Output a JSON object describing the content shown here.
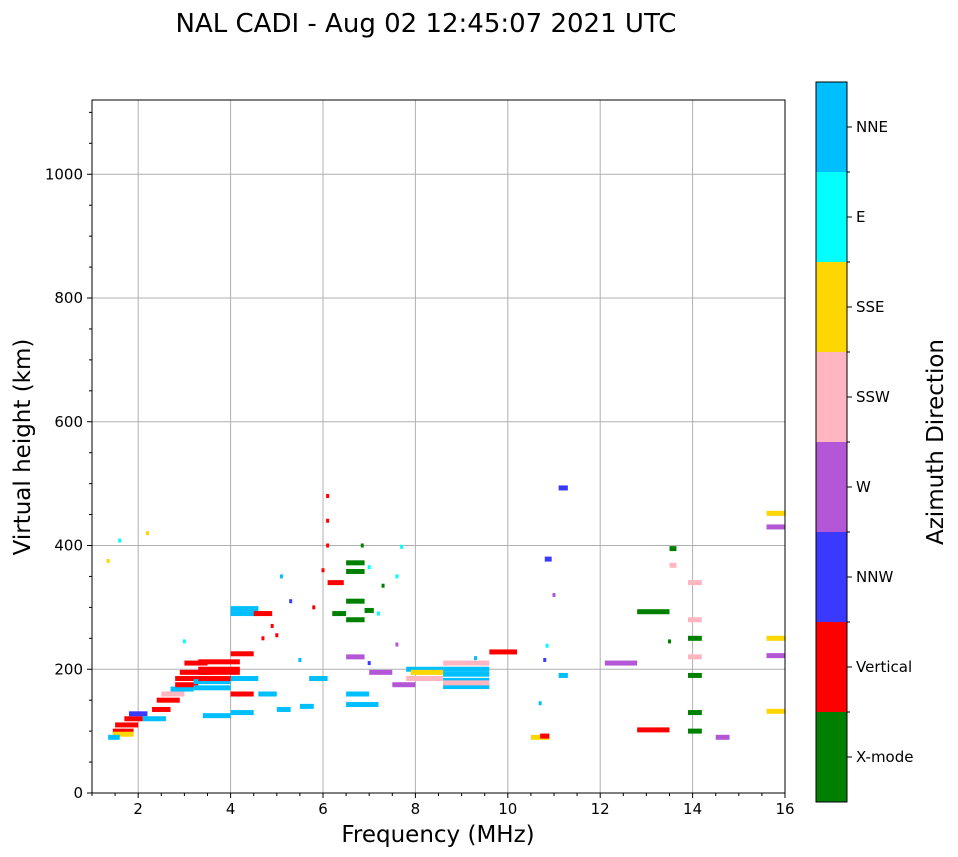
{
  "chart_data": {
    "type": "scatter",
    "title": "NAL CADI - Aug 02 12:45:07 2021 UTC",
    "xlabel": "Frequency (MHz)",
    "ylabel": "Virtual height (km)",
    "xlim": [
      1,
      16
    ],
    "ylim": [
      0,
      1120
    ],
    "xticks": [
      2,
      4,
      6,
      8,
      10,
      12,
      14,
      16
    ],
    "yticks": [
      0,
      200,
      400,
      600,
      800,
      1000
    ],
    "grid": true,
    "colorbar": {
      "label": "Azimuth Direction",
      "categories": [
        {
          "name": "X-mode",
          "color": "#008000"
        },
        {
          "name": "Vertical",
          "color": "#ff0000"
        },
        {
          "name": "NNW",
          "color": "#3a3aff"
        },
        {
          "name": "W",
          "color": "#b457d6"
        },
        {
          "name": "SSW",
          "color": "#ffb6c1"
        },
        {
          "name": "SSE",
          "color": "#ffd700"
        },
        {
          "name": "E",
          "color": "#00ffff"
        },
        {
          "name": "NNE",
          "color": "#00bfff"
        }
      ]
    },
    "segments": [
      {
        "f0": 1.45,
        "f1": 1.9,
        "h": 100,
        "dir": "Vertical"
      },
      {
        "f0": 1.45,
        "f1": 1.9,
        "h": 95,
        "dir": "SSE"
      },
      {
        "f0": 1.35,
        "f1": 1.6,
        "h": 90,
        "dir": "NNE"
      },
      {
        "f0": 1.5,
        "f1": 2.0,
        "h": 110,
        "dir": "Vertical"
      },
      {
        "f0": 1.7,
        "f1": 2.1,
        "h": 120,
        "dir": "Vertical"
      },
      {
        "f0": 1.8,
        "f1": 2.2,
        "h": 128,
        "dir": "NNW"
      },
      {
        "f0": 2.1,
        "f1": 2.6,
        "h": 120,
        "dir": "NNE"
      },
      {
        "f0": 2.3,
        "f1": 2.7,
        "h": 135,
        "dir": "Vertical"
      },
      {
        "f0": 2.4,
        "f1": 2.9,
        "h": 150,
        "dir": "Vertical"
      },
      {
        "f0": 2.5,
        "f1": 3.0,
        "h": 160,
        "dir": "SSW"
      },
      {
        "f0": 2.7,
        "f1": 3.2,
        "h": 168,
        "dir": "NNE"
      },
      {
        "f0": 2.8,
        "f1": 3.3,
        "h": 175,
        "dir": "Vertical"
      },
      {
        "f0": 2.8,
        "f1": 3.5,
        "h": 185,
        "dir": "Vertical"
      },
      {
        "f0": 2.9,
        "f1": 3.6,
        "h": 195,
        "dir": "Vertical"
      },
      {
        "f0": 3.0,
        "f1": 3.5,
        "h": 210,
        "dir": "Vertical"
      },
      {
        "f0": 3.2,
        "f1": 4.0,
        "h": 170,
        "dir": "NNE"
      },
      {
        "f0": 3.2,
        "f1": 4.0,
        "h": 180,
        "dir": "NNE"
      },
      {
        "f0": 3.3,
        "f1": 4.2,
        "h": 185,
        "dir": "Vertical"
      },
      {
        "f0": 3.3,
        "f1": 4.2,
        "h": 195,
        "dir": "Vertical"
      },
      {
        "f0": 3.3,
        "f1": 4.2,
        "h": 200,
        "dir": "Vertical"
      },
      {
        "f0": 3.3,
        "f1": 4.2,
        "h": 212,
        "dir": "Vertical"
      },
      {
        "f0": 3.4,
        "f1": 4.0,
        "h": 125,
        "dir": "NNE"
      },
      {
        "f0": 4.0,
        "f1": 4.5,
        "h": 130,
        "dir": "NNE"
      },
      {
        "f0": 4.0,
        "f1": 4.5,
        "h": 160,
        "dir": "Vertical"
      },
      {
        "f0": 4.0,
        "f1": 4.6,
        "h": 185,
        "dir": "NNE"
      },
      {
        "f0": 4.0,
        "f1": 4.5,
        "h": 225,
        "dir": "Vertical"
      },
      {
        "f0": 4.0,
        "f1": 4.6,
        "h": 290,
        "dir": "NNE"
      },
      {
        "f0": 4.0,
        "f1": 4.6,
        "h": 298,
        "dir": "NNE"
      },
      {
        "f0": 4.5,
        "f1": 4.9,
        "h": 290,
        "dir": "Vertical"
      },
      {
        "f0": 4.6,
        "f1": 5.0,
        "h": 160,
        "dir": "NNE"
      },
      {
        "f0": 5.0,
        "f1": 5.3,
        "h": 135,
        "dir": "NNE"
      },
      {
        "f0": 5.5,
        "f1": 5.8,
        "h": 140,
        "dir": "NNE"
      },
      {
        "f0": 5.7,
        "f1": 6.1,
        "h": 185,
        "dir": "NNE"
      },
      {
        "f0": 6.1,
        "f1": 6.45,
        "h": 340,
        "dir": "Vertical"
      },
      {
        "f0": 6.2,
        "f1": 6.5,
        "h": 290,
        "dir": "X-mode"
      },
      {
        "f0": 6.5,
        "f1": 6.9,
        "h": 280,
        "dir": "X-mode"
      },
      {
        "f0": 6.5,
        "f1": 6.9,
        "h": 358,
        "dir": "X-mode"
      },
      {
        "f0": 6.5,
        "f1": 6.9,
        "h": 372,
        "dir": "X-mode"
      },
      {
        "f0": 6.5,
        "f1": 6.9,
        "h": 310,
        "dir": "X-mode"
      },
      {
        "f0": 6.9,
        "f1": 7.1,
        "h": 295,
        "dir": "X-mode"
      },
      {
        "f0": 6.5,
        "f1": 7.0,
        "h": 160,
        "dir": "NNE"
      },
      {
        "f0": 6.5,
        "f1": 7.2,
        "h": 143,
        "dir": "NNE"
      },
      {
        "f0": 6.5,
        "f1": 6.9,
        "h": 220,
        "dir": "W"
      },
      {
        "f0": 7.0,
        "f1": 7.5,
        "h": 195,
        "dir": "W"
      },
      {
        "f0": 7.5,
        "f1": 8.0,
        "h": 175,
        "dir": "W"
      },
      {
        "f0": 7.8,
        "f1": 8.6,
        "h": 200,
        "dir": "NNE"
      },
      {
        "f0": 7.8,
        "f1": 8.6,
        "h": 185,
        "dir": "SSW"
      },
      {
        "f0": 7.9,
        "f1": 8.6,
        "h": 195,
        "dir": "SSE"
      },
      {
        "f0": 8.6,
        "f1": 9.6,
        "h": 172,
        "dir": "NNE"
      },
      {
        "f0": 8.6,
        "f1": 9.6,
        "h": 182,
        "dir": "NNE"
      },
      {
        "f0": 8.6,
        "f1": 9.6,
        "h": 192,
        "dir": "NNE"
      },
      {
        "f0": 8.6,
        "f1": 9.6,
        "h": 200,
        "dir": "NNE"
      },
      {
        "f0": 8.6,
        "f1": 9.6,
        "h": 178,
        "dir": "SSW"
      },
      {
        "f0": 8.6,
        "f1": 9.6,
        "h": 210,
        "dir": "SSW"
      },
      {
        "f0": 9.6,
        "f1": 10.2,
        "h": 228,
        "dir": "Vertical"
      },
      {
        "f0": 10.5,
        "f1": 10.9,
        "h": 90,
        "dir": "SSE"
      },
      {
        "f0": 10.7,
        "f1": 10.9,
        "h": 92,
        "dir": "Vertical"
      },
      {
        "f0": 10.8,
        "f1": 10.95,
        "h": 378,
        "dir": "NNW"
      },
      {
        "f0": 11.1,
        "f1": 11.3,
        "h": 493,
        "dir": "NNW"
      },
      {
        "f0": 11.1,
        "f1": 11.3,
        "h": 190,
        "dir": "NNE"
      },
      {
        "f0": 12.1,
        "f1": 12.8,
        "h": 210,
        "dir": "W"
      },
      {
        "f0": 12.8,
        "f1": 13.5,
        "h": 293,
        "dir": "X-mode"
      },
      {
        "f0": 12.8,
        "f1": 13.5,
        "h": 102,
        "dir": "Vertical"
      },
      {
        "f0": 13.5,
        "f1": 13.65,
        "h": 395,
        "dir": "X-mode"
      },
      {
        "f0": 13.5,
        "f1": 13.65,
        "h": 368,
        "dir": "SSW"
      },
      {
        "f0": 13.9,
        "f1": 14.2,
        "h": 340,
        "dir": "SSW"
      },
      {
        "f0": 13.9,
        "f1": 14.2,
        "h": 280,
        "dir": "SSW"
      },
      {
        "f0": 13.9,
        "f1": 14.2,
        "h": 220,
        "dir": "SSW"
      },
      {
        "f0": 13.9,
        "f1": 14.2,
        "h": 250,
        "dir": "X-mode"
      },
      {
        "f0": 13.9,
        "f1": 14.2,
        "h": 190,
        "dir": "X-mode"
      },
      {
        "f0": 13.9,
        "f1": 14.2,
        "h": 130,
        "dir": "X-mode"
      },
      {
        "f0": 13.9,
        "f1": 14.2,
        "h": 100,
        "dir": "X-mode"
      },
      {
        "f0": 14.5,
        "f1": 14.8,
        "h": 90,
        "dir": "W"
      },
      {
        "f0": 15.6,
        "f1": 16.0,
        "h": 452,
        "dir": "SSE"
      },
      {
        "f0": 15.6,
        "f1": 16.0,
        "h": 430,
        "dir": "W"
      },
      {
        "f0": 15.6,
        "f1": 16.0,
        "h": 250,
        "dir": "SSE"
      },
      {
        "f0": 15.6,
        "f1": 16.0,
        "h": 222,
        "dir": "W"
      },
      {
        "f0": 15.6,
        "f1": 16.0,
        "h": 132,
        "dir": "SSE"
      }
    ],
    "points": [
      {
        "f": 1.6,
        "h": 408,
        "dir": "E"
      },
      {
        "f": 2.2,
        "h": 420,
        "dir": "SSE"
      },
      {
        "f": 1.35,
        "h": 375,
        "dir": "SSE"
      },
      {
        "f": 3.0,
        "h": 245,
        "dir": "E"
      },
      {
        "f": 5.1,
        "h": 350,
        "dir": "NNE"
      },
      {
        "f": 5.3,
        "h": 310,
        "dir": "NNW"
      },
      {
        "f": 4.9,
        "h": 270,
        "dir": "Vertical"
      },
      {
        "f": 4.7,
        "h": 250,
        "dir": "Vertical"
      },
      {
        "f": 5.0,
        "h": 255,
        "dir": "Vertical"
      },
      {
        "f": 5.5,
        "h": 215,
        "dir": "NNE"
      },
      {
        "f": 5.8,
        "h": 300,
        "dir": "Vertical"
      },
      {
        "f": 6.0,
        "h": 360,
        "dir": "Vertical"
      },
      {
        "f": 6.1,
        "h": 400,
        "dir": "Vertical"
      },
      {
        "f": 6.1,
        "h": 440,
        "dir": "Vertical"
      },
      {
        "f": 6.1,
        "h": 480,
        "dir": "Vertical"
      },
      {
        "f": 7.0,
        "h": 365,
        "dir": "E"
      },
      {
        "f": 7.3,
        "h": 335,
        "dir": "X-mode"
      },
      {
        "f": 7.6,
        "h": 350,
        "dir": "E"
      },
      {
        "f": 7.7,
        "h": 398,
        "dir": "E"
      },
      {
        "f": 7.2,
        "h": 290,
        "dir": "E"
      },
      {
        "f": 6.85,
        "h": 400,
        "dir": "X-mode"
      },
      {
        "f": 7.6,
        "h": 240,
        "dir": "W"
      },
      {
        "f": 7.0,
        "h": 210,
        "dir": "NNW"
      },
      {
        "f": 9.3,
        "h": 218,
        "dir": "NNE"
      },
      {
        "f": 10.8,
        "h": 215,
        "dir": "NNW"
      },
      {
        "f": 11.0,
        "h": 320,
        "dir": "W"
      },
      {
        "f": 10.7,
        "h": 145,
        "dir": "NNE"
      },
      {
        "f": 10.85,
        "h": 238,
        "dir": "E"
      },
      {
        "f": 13.5,
        "h": 245,
        "dir": "X-mode"
      }
    ]
  }
}
